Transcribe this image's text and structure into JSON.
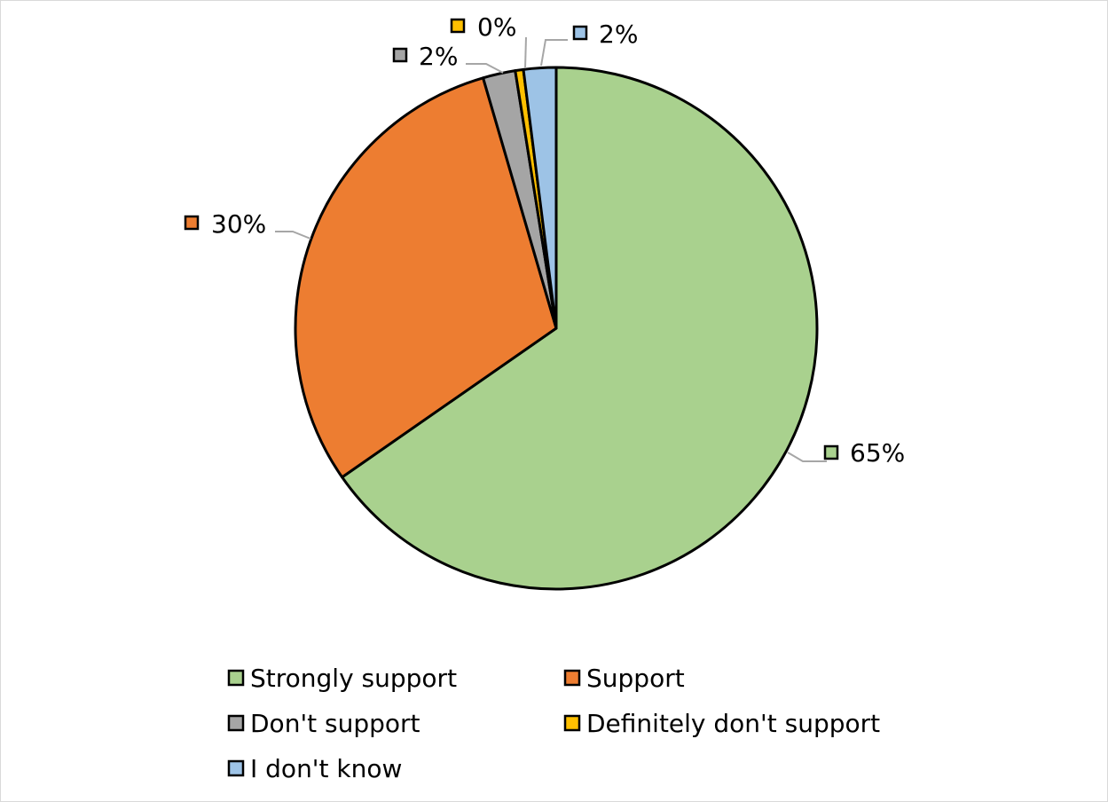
{
  "chart_data": {
    "type": "pie",
    "categories": [
      "Strongly support",
      "Support",
      "Don't support",
      "Definitely don't support",
      "I don't know"
    ],
    "values": [
      65,
      30,
      2,
      0.5,
      2
    ],
    "labels": [
      "65%",
      "30%",
      "2%",
      "0%",
      "2%"
    ],
    "colors": [
      "#a9d18e",
      "#ed7d31",
      "#a5a5a5",
      "#ffc000",
      "#9dc3e6"
    ],
    "legend_position": "bottom",
    "start_angle": "top, clockwise"
  }
}
